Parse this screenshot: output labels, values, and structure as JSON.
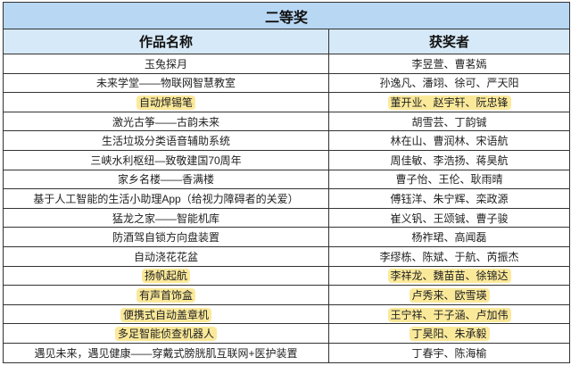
{
  "title": "二等奖",
  "columns": [
    "作品名称",
    "获奖者"
  ],
  "highlight_color": "#fbe99a",
  "rows": [
    {
      "work": "玉兔探月",
      "winners": "李昱萱、曹茗嫣",
      "highlighted": false
    },
    {
      "work": "未来学堂——物联网智慧教室",
      "winners": "孙逸凡、潘翊、徐可、严天阳",
      "highlighted": false
    },
    {
      "work": "自动焊锡笔",
      "winners": "董开业、赵宇轩、阮忠锋",
      "highlighted": true
    },
    {
      "work": "激光古筝——古韵未来",
      "winners": "胡雪芸、丁韵铖",
      "highlighted": false
    },
    {
      "work": "生活垃圾分类语音辅助系统",
      "winners": "林在山、曹润林、宋语航",
      "highlighted": false
    },
    {
      "work": "三峡水利枢纽—致敬建国70周年",
      "winners": "周佳敏、李浩扬、蒋昊航",
      "highlighted": false
    },
    {
      "work": "家乡名楼——香满楼",
      "winners": "曹子怡、王伦、耿雨晴",
      "highlighted": false
    },
    {
      "work": "基于人工智能的生活小助理App（给视力障碍者的关爱）",
      "winners": "傅钰洋、朱宁辉、栾政源",
      "highlighted": false
    },
    {
      "work": "猛龙之家——智能机库",
      "winners": "崔义钒、王颂铖、曹子骏",
      "highlighted": false
    },
    {
      "work": "防酒驾自锁方向盘装置",
      "winners": "杨祚珺、高闻磊",
      "highlighted": false
    },
    {
      "work": "自动浇花花盆",
      "winners": "李缪栋、陈斌、于航、芮振杰",
      "highlighted": false
    },
    {
      "work": "扬帆起航",
      "winners": "李祥龙、魏苗苗、徐锦达",
      "highlighted": true
    },
    {
      "work": "有声首饰盒",
      "winners": "卢秀来、欧雪瑛",
      "highlighted": true
    },
    {
      "work": "便携式自动盖章机",
      "winners": "王宁祥、于子涵、卢加伟",
      "highlighted": true
    },
    {
      "work": "多足智能侦查机器人",
      "winners": "丁昊阳、朱承毅",
      "highlighted": true
    },
    {
      "work": "遇见未来，遇见健康——穿戴式膀胱肌互联网+医护装置",
      "winners": "丁春宇、陈海榆",
      "highlighted": false
    }
  ]
}
